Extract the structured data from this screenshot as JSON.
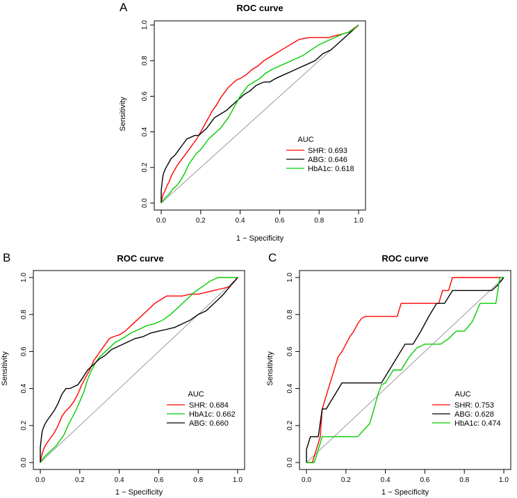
{
  "chart_data": [
    {
      "panel": "A",
      "type": "line",
      "title": "ROC curve",
      "xlabel": "1 − Specificity",
      "ylabel": "Sensitivity",
      "xlim": [
        0,
        1
      ],
      "ylim": [
        0,
        1
      ],
      "xticks": [
        "0.0",
        "0.2",
        "0.4",
        "0.6",
        "0.8",
        "1.0"
      ],
      "yticks": [
        "0.0",
        "0.2",
        "0.4",
        "0.6",
        "0.8",
        "1.0"
      ],
      "legend": {
        "title": "AUC",
        "position": "bottom-right",
        "entries": [
          {
            "label": "SHR: 0.693",
            "color": "#ff0000"
          },
          {
            "label": "ABG: 0.646",
            "color": "#000000"
          },
          {
            "label": "HbA1c: 0.618",
            "color": "#00cc00"
          }
        ]
      },
      "series": [
        {
          "name": "SHR",
          "color": "#ff0000",
          "x": [
            0,
            0.005,
            0.01,
            0.02,
            0.03,
            0.04,
            0.05,
            0.06,
            0.08,
            0.1,
            0.12,
            0.14,
            0.16,
            0.18,
            0.2,
            0.22,
            0.24,
            0.26,
            0.28,
            0.3,
            0.32,
            0.34,
            0.36,
            0.38,
            0.4,
            0.43,
            0.46,
            0.49,
            0.52,
            0.55,
            0.58,
            0.61,
            0.64,
            0.67,
            0.7,
            0.75,
            0.8,
            0.85,
            0.88,
            0.92,
            0.95,
            1.0
          ],
          "y": [
            0,
            0.03,
            0.05,
            0.07,
            0.1,
            0.12,
            0.15,
            0.17,
            0.21,
            0.24,
            0.27,
            0.3,
            0.33,
            0.36,
            0.4,
            0.44,
            0.48,
            0.52,
            0.55,
            0.59,
            0.62,
            0.65,
            0.67,
            0.69,
            0.7,
            0.72,
            0.75,
            0.77,
            0.8,
            0.82,
            0.84,
            0.86,
            0.88,
            0.9,
            0.92,
            0.93,
            0.93,
            0.93,
            0.94,
            0.95,
            0.96,
            1.0
          ]
        },
        {
          "name": "ABG",
          "color": "#000000",
          "x": [
            0,
            0.0,
            0.005,
            0.01,
            0.02,
            0.03,
            0.04,
            0.05,
            0.07,
            0.09,
            0.11,
            0.13,
            0.15,
            0.17,
            0.19,
            0.21,
            0.23,
            0.25,
            0.27,
            0.3,
            0.33,
            0.36,
            0.39,
            0.42,
            0.45,
            0.48,
            0.52,
            0.55,
            0.58,
            0.62,
            0.66,
            0.7,
            0.74,
            0.78,
            0.82,
            0.86,
            0.9,
            0.93,
            0.96,
            1.0
          ],
          "y": [
            0,
            0.07,
            0.12,
            0.16,
            0.19,
            0.21,
            0.23,
            0.25,
            0.27,
            0.3,
            0.33,
            0.36,
            0.37,
            0.38,
            0.38,
            0.4,
            0.42,
            0.45,
            0.48,
            0.5,
            0.52,
            0.55,
            0.58,
            0.61,
            0.63,
            0.66,
            0.68,
            0.68,
            0.7,
            0.72,
            0.74,
            0.76,
            0.78,
            0.8,
            0.84,
            0.86,
            0.9,
            0.93,
            0.96,
            1.0
          ]
        },
        {
          "name": "HbA1c",
          "color": "#00cc00",
          "x": [
            0,
            0.02,
            0.04,
            0.06,
            0.08,
            0.1,
            0.12,
            0.14,
            0.16,
            0.18,
            0.2,
            0.22,
            0.24,
            0.26,
            0.28,
            0.3,
            0.32,
            0.34,
            0.36,
            0.38,
            0.4,
            0.42,
            0.44,
            0.47,
            0.5,
            0.53,
            0.56,
            0.6,
            0.64,
            0.68,
            0.72,
            0.76,
            0.8,
            0.84,
            0.88,
            0.92,
            0.95,
            0.98,
            1.0
          ],
          "y": [
            0,
            0.03,
            0.05,
            0.08,
            0.1,
            0.13,
            0.17,
            0.22,
            0.25,
            0.28,
            0.3,
            0.33,
            0.36,
            0.38,
            0.4,
            0.42,
            0.45,
            0.48,
            0.52,
            0.56,
            0.6,
            0.63,
            0.66,
            0.68,
            0.7,
            0.73,
            0.75,
            0.77,
            0.79,
            0.81,
            0.83,
            0.86,
            0.89,
            0.91,
            0.93,
            0.95,
            0.96,
            0.98,
            1.0
          ]
        }
      ]
    },
    {
      "panel": "B",
      "type": "line",
      "title": "ROC curve",
      "xlabel": "1 − Specificity",
      "ylabel": "Sensitivity",
      "xlim": [
        0,
        1
      ],
      "ylim": [
        0,
        1
      ],
      "xticks": [
        "0.0",
        "0.2",
        "0.4",
        "0.6",
        "0.8",
        "1.0"
      ],
      "yticks": [
        "0.0",
        "0.2",
        "0.4",
        "0.6",
        "0.8",
        "1.0"
      ],
      "legend": {
        "title": "AUC",
        "position": "bottom-right",
        "entries": [
          {
            "label": "SHR: 0.684",
            "color": "#ff0000"
          },
          {
            "label": "HbA1c: 0.662",
            "color": "#00cc00"
          },
          {
            "label": "ABG: 0.660",
            "color": "#000000"
          }
        ]
      },
      "series": [
        {
          "name": "SHR",
          "color": "#ff0000",
          "x": [
            0,
            0.01,
            0.02,
            0.03,
            0.05,
            0.07,
            0.09,
            0.11,
            0.13,
            0.15,
            0.17,
            0.19,
            0.21,
            0.23,
            0.25,
            0.27,
            0.29,
            0.31,
            0.33,
            0.35,
            0.37,
            0.4,
            0.43,
            0.46,
            0.49,
            0.52,
            0.55,
            0.58,
            0.61,
            0.64,
            0.68,
            0.72,
            0.76,
            0.8,
            0.84,
            0.88,
            0.92,
            0.96,
            1.0
          ],
          "y": [
            0,
            0.05,
            0.08,
            0.1,
            0.13,
            0.16,
            0.2,
            0.25,
            0.28,
            0.3,
            0.33,
            0.37,
            0.42,
            0.46,
            0.5,
            0.55,
            0.58,
            0.61,
            0.64,
            0.67,
            0.68,
            0.69,
            0.71,
            0.74,
            0.77,
            0.8,
            0.83,
            0.86,
            0.88,
            0.9,
            0.9,
            0.9,
            0.91,
            0.91,
            0.92,
            0.93,
            0.94,
            0.95,
            1.0
          ]
        },
        {
          "name": "HbA1c",
          "color": "#00cc00",
          "x": [
            0,
            0.02,
            0.04,
            0.06,
            0.08,
            0.1,
            0.12,
            0.14,
            0.16,
            0.18,
            0.2,
            0.22,
            0.24,
            0.26,
            0.28,
            0.3,
            0.32,
            0.34,
            0.36,
            0.38,
            0.4,
            0.43,
            0.46,
            0.5,
            0.54,
            0.58,
            0.62,
            0.66,
            0.7,
            0.74,
            0.78,
            0.82,
            0.86,
            0.9,
            0.94,
            0.97,
            1.0
          ],
          "y": [
            0,
            0.03,
            0.05,
            0.07,
            0.09,
            0.12,
            0.15,
            0.2,
            0.24,
            0.28,
            0.33,
            0.38,
            0.45,
            0.5,
            0.54,
            0.57,
            0.59,
            0.61,
            0.63,
            0.65,
            0.66,
            0.68,
            0.7,
            0.72,
            0.74,
            0.75,
            0.77,
            0.8,
            0.84,
            0.88,
            0.92,
            0.95,
            0.98,
            1.0,
            1.0,
            1.0,
            1.0
          ]
        },
        {
          "name": "ABG",
          "color": "#000000",
          "x": [
            0,
            0.0,
            0.005,
            0.01,
            0.02,
            0.03,
            0.05,
            0.07,
            0.09,
            0.11,
            0.13,
            0.15,
            0.17,
            0.19,
            0.21,
            0.24,
            0.27,
            0.3,
            0.33,
            0.36,
            0.4,
            0.44,
            0.48,
            0.52,
            0.56,
            0.6,
            0.64,
            0.68,
            0.72,
            0.76,
            0.8,
            0.84,
            0.88,
            0.92,
            0.96,
            1.0
          ],
          "y": [
            0,
            0.08,
            0.13,
            0.17,
            0.2,
            0.22,
            0.25,
            0.28,
            0.32,
            0.37,
            0.4,
            0.4,
            0.41,
            0.42,
            0.45,
            0.5,
            0.53,
            0.56,
            0.58,
            0.61,
            0.63,
            0.65,
            0.67,
            0.68,
            0.7,
            0.71,
            0.72,
            0.73,
            0.75,
            0.77,
            0.8,
            0.82,
            0.86,
            0.9,
            0.95,
            1.0
          ]
        }
      ]
    },
    {
      "panel": "C",
      "type": "line",
      "title": "ROC curve",
      "xlabel": "1 − Specificity",
      "ylabel": "Sensitivity",
      "xlim": [
        0,
        1
      ],
      "ylim": [
        0,
        1
      ],
      "xticks": [
        "0.0",
        "0.2",
        "0.4",
        "0.6",
        "0.8",
        "1.0"
      ],
      "yticks": [
        "0.0",
        "0.2",
        "0.4",
        "0.6",
        "0.8",
        "1.0"
      ],
      "legend": {
        "title": "AUC",
        "position": "bottom-right",
        "entries": [
          {
            "label": "SHR: 0.753",
            "color": "#ff0000"
          },
          {
            "label": "ABG: 0.628",
            "color": "#000000"
          },
          {
            "label": "HbA1c: 0.474",
            "color": "#00cc00"
          }
        ]
      },
      "series": [
        {
          "name": "SHR",
          "color": "#ff0000",
          "x": [
            0,
            0.03,
            0.05,
            0.07,
            0.08,
            0.1,
            0.12,
            0.14,
            0.16,
            0.18,
            0.2,
            0.22,
            0.24,
            0.26,
            0.28,
            0.3,
            0.46,
            0.48,
            0.67,
            0.69,
            0.72,
            0.74,
            0.95,
            0.97,
            1.0
          ],
          "y": [
            0,
            0.0,
            0.07,
            0.14,
            0.29,
            0.36,
            0.43,
            0.5,
            0.57,
            0.6,
            0.64,
            0.68,
            0.71,
            0.75,
            0.78,
            0.79,
            0.79,
            0.86,
            0.86,
            0.93,
            0.93,
            1.0,
            1.0,
            1.0,
            1.0
          ]
        },
        {
          "name": "ABG",
          "color": "#000000",
          "x": [
            0,
            0.0,
            0.02,
            0.04,
            0.06,
            0.08,
            0.1,
            0.14,
            0.18,
            0.22,
            0.26,
            0.3,
            0.34,
            0.38,
            0.42,
            0.46,
            0.5,
            0.54,
            0.58,
            0.62,
            0.66,
            0.7,
            0.74,
            0.78,
            0.82,
            0.86,
            0.9,
            0.94,
            0.97,
            1.0
          ],
          "y": [
            0,
            0.07,
            0.14,
            0.14,
            0.14,
            0.29,
            0.29,
            0.36,
            0.43,
            0.43,
            0.43,
            0.43,
            0.43,
            0.43,
            0.5,
            0.57,
            0.64,
            0.64,
            0.71,
            0.79,
            0.86,
            0.86,
            0.93,
            0.93,
            0.93,
            0.93,
            0.93,
            0.93,
            0.96,
            1.0
          ]
        },
        {
          "name": "HbA1c",
          "color": "#00cc00",
          "x": [
            0,
            0.04,
            0.06,
            0.08,
            0.1,
            0.2,
            0.26,
            0.32,
            0.34,
            0.36,
            0.38,
            0.4,
            0.44,
            0.48,
            0.52,
            0.56,
            0.6,
            0.64,
            0.68,
            0.72,
            0.76,
            0.8,
            0.84,
            0.88,
            0.92,
            0.96,
            0.98,
            1.0
          ],
          "y": [
            0,
            0.0,
            0.07,
            0.14,
            0.14,
            0.14,
            0.14,
            0.21,
            0.28,
            0.36,
            0.42,
            0.43,
            0.5,
            0.5,
            0.57,
            0.62,
            0.64,
            0.64,
            0.64,
            0.67,
            0.71,
            0.71,
            0.76,
            0.86,
            0.86,
            0.86,
            1.0,
            1.0
          ]
        }
      ]
    }
  ]
}
